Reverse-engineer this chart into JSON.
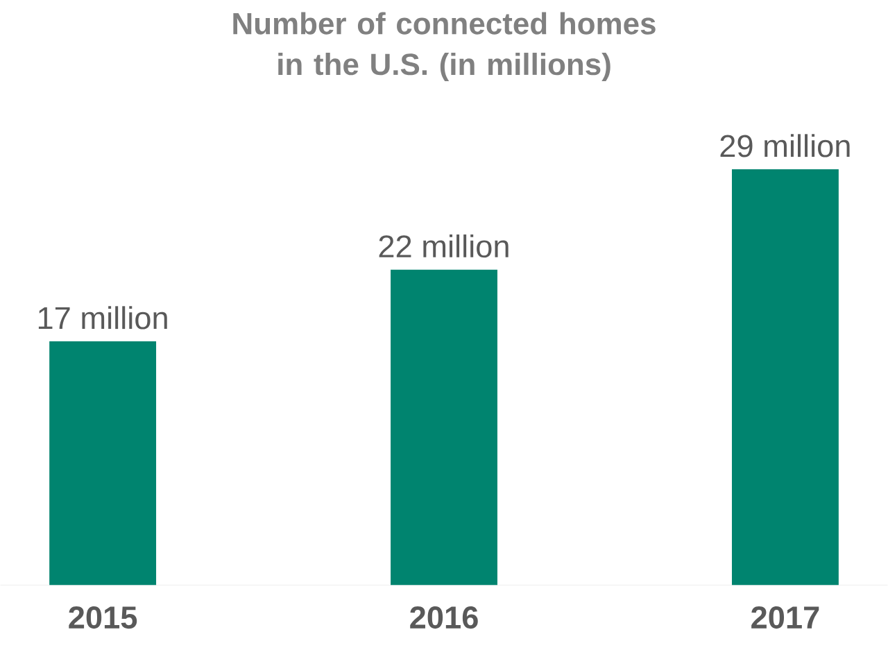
{
  "chart_data": {
    "type": "bar",
    "title": "Number of connected homes in the U.S. (in millions)",
    "categories": [
      "2015",
      "2016",
      "2017"
    ],
    "values": [
      17,
      22,
      29
    ],
    "value_labels": [
      "17 million",
      "22 million",
      "29 million"
    ],
    "color": "#00846f"
  }
}
